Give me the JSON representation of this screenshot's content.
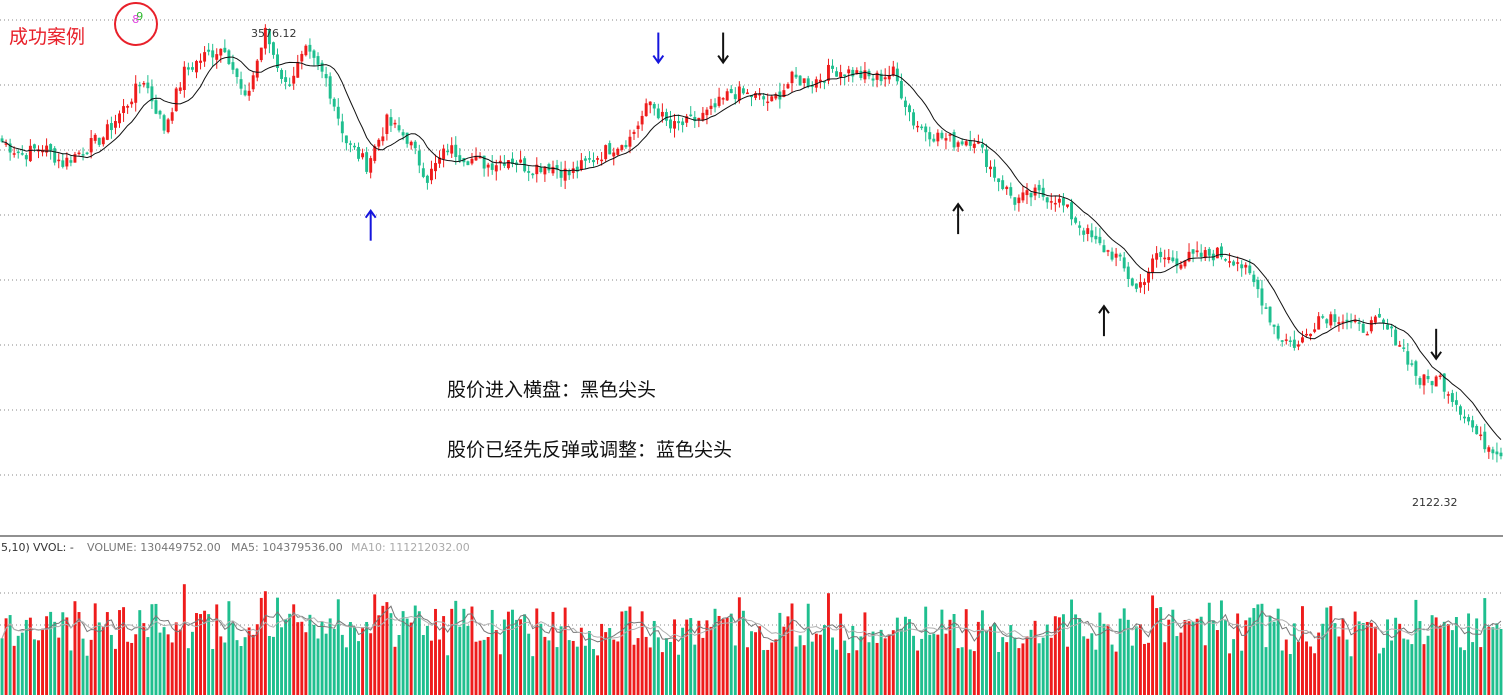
{
  "header": {
    "title": "成功案例",
    "title_color": "#e8202a"
  },
  "annotations": {
    "line1": "股价进入横盘：黑色尖头",
    "line2": "股价已经先反弹或调整：蓝色尖头"
  },
  "price_labels": {
    "high": "3576.12",
    "low": "2122.32"
  },
  "volume_panel": {
    "prefix": "5,10)",
    "name": "VVOL: -",
    "volume_text": "VOLUME: 130449752.00",
    "ma5_text": "MA5: 104379536.00",
    "ma10_text": "MA10: 111212032.00"
  },
  "colors": {
    "up": "#ee1c1c",
    "down": "#1fbf8f",
    "ma": "#111111",
    "count": "#e040e0",
    "nine": "#33bb33",
    "blue_arrow": "#1515dd",
    "black_arrow": "#111111",
    "grid": "#8a8a8a",
    "vol_ma5": "#777777",
    "vol_ma10": "#b0b0b0"
  },
  "chart_data": {
    "type": "candlestick",
    "ylim": [
      2050,
      3660
    ],
    "vol_max": 200,
    "ma_period": 10,
    "keypoints": [
      [
        0,
        3230
      ],
      [
        5,
        3190
      ],
      [
        10,
        3215
      ],
      [
        15,
        3165
      ],
      [
        20,
        3205
      ],
      [
        25,
        3245
      ],
      [
        30,
        3330
      ],
      [
        35,
        3420
      ],
      [
        40,
        3270
      ],
      [
        45,
        3440
      ],
      [
        50,
        3490
      ],
      [
        55,
        3520
      ],
      [
        60,
        3350
      ],
      [
        65,
        3560
      ],
      [
        70,
        3400
      ],
      [
        75,
        3500
      ],
      [
        80,
        3420
      ],
      [
        85,
        3230
      ],
      [
        90,
        3160
      ],
      [
        95,
        3290
      ],
      [
        100,
        3240
      ],
      [
        105,
        3120
      ],
      [
        110,
        3210
      ],
      [
        115,
        3180
      ],
      [
        120,
        3160
      ],
      [
        125,
        3180
      ],
      [
        130,
        3150
      ],
      [
        135,
        3160
      ],
      [
        140,
        3130
      ],
      [
        145,
        3170
      ],
      [
        150,
        3210
      ],
      [
        155,
        3240
      ],
      [
        160,
        3350
      ],
      [
        165,
        3270
      ],
      [
        170,
        3290
      ],
      [
        175,
        3320
      ],
      [
        180,
        3380
      ],
      [
        185,
        3370
      ],
      [
        190,
        3350
      ],
      [
        195,
        3420
      ],
      [
        200,
        3410
      ],
      [
        205,
        3450
      ],
      [
        210,
        3440
      ],
      [
        215,
        3420
      ],
      [
        220,
        3440
      ],
      [
        225,
        3290
      ],
      [
        230,
        3250
      ],
      [
        235,
        3230
      ],
      [
        240,
        3240
      ],
      [
        245,
        3130
      ],
      [
        250,
        3050
      ],
      [
        255,
        3070
      ],
      [
        260,
        3060
      ],
      [
        265,
        2990
      ],
      [
        270,
        2920
      ],
      [
        275,
        2880
      ],
      [
        280,
        2780
      ],
      [
        285,
        2880
      ],
      [
        290,
        2870
      ],
      [
        295,
        2880
      ],
      [
        300,
        2890
      ],
      [
        305,
        2870
      ],
      [
        310,
        2780
      ],
      [
        315,
        2640
      ],
      [
        320,
        2610
      ],
      [
        325,
        2700
      ],
      [
        330,
        2700
      ],
      [
        335,
        2660
      ],
      [
        340,
        2680
      ],
      [
        345,
        2620
      ],
      [
        350,
        2500
      ],
      [
        355,
        2510
      ],
      [
        360,
        2420
      ],
      [
        365,
        2320
      ],
      [
        370,
        2290
      ]
    ],
    "td_sequences": [
      {
        "index": 33,
        "label": "8",
        "price": 3590
      },
      {
        "index": 34,
        "label": "9",
        "price": 3600
      }
    ],
    "arrows": [
      {
        "color": "blue",
        "direction": "up",
        "index": 91,
        "price": 3020
      },
      {
        "color": "blue",
        "direction": "down",
        "index": 162,
        "price": 3470
      },
      {
        "color": "black",
        "direction": "down",
        "index": 178,
        "price": 3470
      },
      {
        "color": "black",
        "direction": "up",
        "index": 236,
        "price": 3040
      },
      {
        "color": "black",
        "direction": "up",
        "index": 272,
        "price": 2730
      },
      {
        "color": "black",
        "direction": "down",
        "index": 354,
        "price": 2570
      }
    ],
    "total_bars": 371
  }
}
